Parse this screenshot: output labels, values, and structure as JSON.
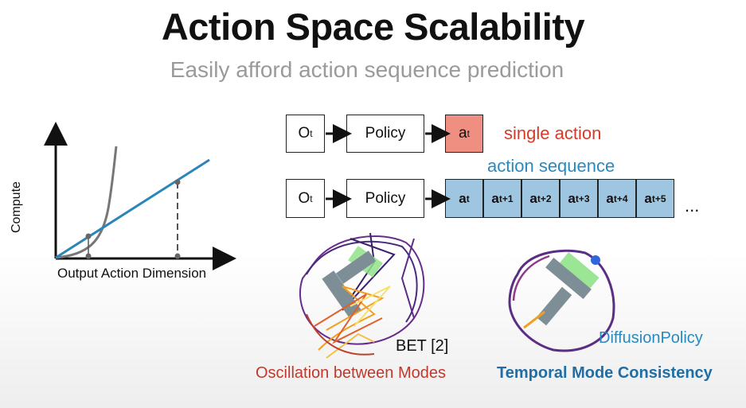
{
  "title": "Action Space Scalability",
  "subtitle": "Easily afford action sequence prediction",
  "chart": {
    "ylabel": "Compute",
    "xlabel": "Output Action Dimension"
  },
  "pipeline_single": {
    "obs": "O",
    "obs_sub": "t",
    "policy": "Policy",
    "action": "a",
    "action_sub": "t",
    "label": "single action",
    "label_color": "#d63b2a"
  },
  "pipeline_sequence": {
    "label": "action sequence",
    "label_color": "#2a8ac0",
    "obs": "O",
    "obs_sub": "t",
    "policy": "Policy",
    "actions": [
      {
        "base": "a",
        "sub": "t"
      },
      {
        "base": "a",
        "sub": "t+1"
      },
      {
        "base": "a",
        "sub": "t+2"
      },
      {
        "base": "a",
        "sub": "t+3"
      },
      {
        "base": "a",
        "sub": "t+4"
      },
      {
        "base": "a",
        "sub": "t+5"
      }
    ],
    "ellipsis": "..."
  },
  "bet": {
    "name": "BET [2]",
    "caption": "Oscillation between Modes",
    "caption_color": "#c0392b"
  },
  "diffusion": {
    "name": "DiffusionPolicy",
    "name_color": "#2a8ac0",
    "caption": "Temporal Mode Consistency",
    "caption_color": "#1f6fa6"
  },
  "colors": {
    "accent_blue": "#2a8ac0",
    "single_action_fill": "#ee8f82",
    "sequence_action_fill": "#9fc6e0",
    "t_block_gray": "#7d8e96",
    "t_block_green": "#8fe38a"
  }
}
